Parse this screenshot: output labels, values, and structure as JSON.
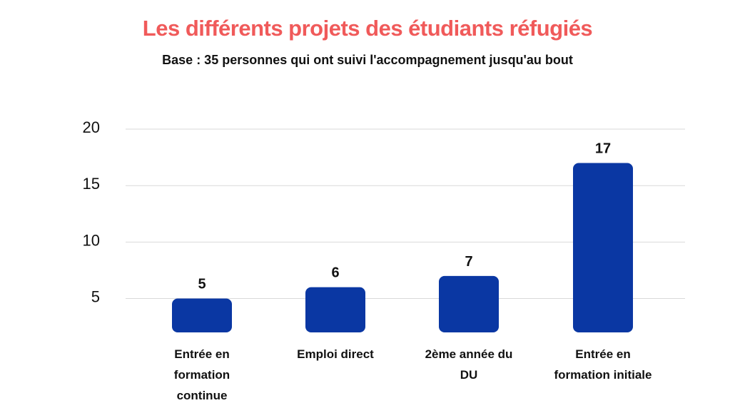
{
  "colors": {
    "title": "#f05a5a",
    "text": "#111111",
    "bar": "#0a37a3",
    "grid": "#d9d9d9"
  },
  "chart_data": {
    "type": "bar",
    "title": "Les différents projets des étudiants réfugiés",
    "subtitle": "Base : 35 personnes qui ont suivi l'accompagnement jusqu'au bout",
    "categories": [
      [
        "Entrée en",
        "formation",
        "continue"
      ],
      [
        "Emploi direct"
      ],
      [
        "2ème année du",
        "DU"
      ],
      [
        "Entrée en",
        "formation initiale"
      ]
    ],
    "values": [
      5,
      6,
      7,
      17
    ],
    "y_ticks": [
      5,
      10,
      15,
      20
    ],
    "ylim": [
      2,
      20
    ],
    "grid": true,
    "xlabel": "",
    "ylabel": ""
  }
}
